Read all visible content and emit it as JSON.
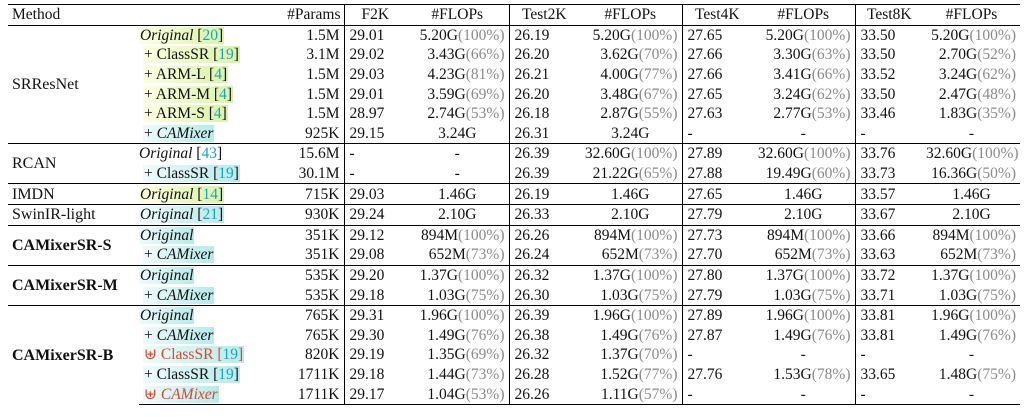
{
  "headers": [
    "Method",
    "#Params",
    "F2K",
    "#FLOPs",
    "Test2K",
    "#FLOPs",
    "Test4K",
    "#FLOPs",
    "Test8K",
    "#FLOPs"
  ],
  "groups": [
    {
      "name": "SRResNet",
      "bold": false,
      "rows": [
        {
          "label": "Original",
          "prefix": "",
          "italic": true,
          "cite": "20",
          "hl": "y",
          "red": false,
          "params": "1.5M",
          "f2k": "29.01",
          "f2k_flops": "5.20G",
          "f2k_pct": "(100%)",
          "t2k": "26.19",
          "t2k_flops": "5.20G",
          "t2k_pct": "(100%)",
          "t4k": "27.65",
          "t4k_flops": "5.20G",
          "t4k_pct": "(100%)",
          "t8k": "33.50",
          "t8k_flops": "5.20G",
          "t8k_pct": "(100%)"
        },
        {
          "label": "ClassSR",
          "prefix": "+ ",
          "italic": false,
          "cite": "19",
          "hl": "y",
          "red": false,
          "params": "3.1M",
          "f2k": "29.02",
          "f2k_flops": "3.43G",
          "f2k_pct": "(66%)",
          "t2k": "26.20",
          "t2k_flops": "3.62G",
          "t2k_pct": "(70%)",
          "t4k": "27.66",
          "t4k_flops": "3.30G",
          "t4k_pct": "(63%)",
          "t8k": "33.50",
          "t8k_flops": "2.70G",
          "t8k_pct": "(52%)"
        },
        {
          "label": "ARM-L",
          "prefix": "+ ",
          "italic": false,
          "cite": "4",
          "hl": "y",
          "red": false,
          "params": "1.5M",
          "f2k": "29.03",
          "f2k_flops": "4.23G",
          "f2k_pct": "(81%)",
          "t2k": "26.21",
          "t2k_flops": "4.00G",
          "t2k_pct": "(77%)",
          "t4k": "27.66",
          "t4k_flops": "3.41G",
          "t4k_pct": "(66%)",
          "t8k": "33.52",
          "t8k_flops": "3.24G",
          "t8k_pct": "(62%)"
        },
        {
          "label": "ARM-M",
          "prefix": "+ ",
          "italic": false,
          "cite": "4",
          "hl": "y",
          "red": false,
          "params": "1.5M",
          "f2k": "29.01",
          "f2k_flops": "3.59G",
          "f2k_pct": "(69%)",
          "t2k": "26.20",
          "t2k_flops": "3.48G",
          "t2k_pct": "(67%)",
          "t4k": "27.65",
          "t4k_flops": "3.24G",
          "t4k_pct": "(62%)",
          "t8k": "33.50",
          "t8k_flops": "2.47G",
          "t8k_pct": "(48%)"
        },
        {
          "label": "ARM-S",
          "prefix": "+ ",
          "italic": false,
          "cite": "4",
          "hl": "y",
          "red": false,
          "params": "1.5M",
          "f2k": "28.97",
          "f2k_flops": "2.74G",
          "f2k_pct": "(53%)",
          "t2k": "26.18",
          "t2k_flops": "2.87G",
          "t2k_pct": "(55%)",
          "t4k": "27.63",
          "t4k_flops": "2.77G",
          "t4k_pct": "(53%)",
          "t8k": "33.46",
          "t8k_flops": "1.83G",
          "t8k_pct": "(35%)"
        },
        {
          "label": "CAMixer",
          "prefix": "+ ",
          "italic": true,
          "cite": "",
          "hl": "c",
          "red": false,
          "params": "925K",
          "f2k": "29.15",
          "f2k_flops": "3.24G",
          "f2k_pct": "",
          "t2k": "26.31",
          "t2k_flops": "3.24G",
          "t2k_pct": "",
          "t4k": "-",
          "t4k_flops": "-",
          "t4k_pct": "",
          "t8k": "-",
          "t8k_flops": "-",
          "t8k_pct": ""
        }
      ]
    },
    {
      "name": "RCAN",
      "bold": false,
      "rows": [
        {
          "label": "Original",
          "prefix": "",
          "italic": true,
          "cite": "43",
          "hl": "",
          "red": false,
          "params": "15.6M",
          "f2k": "-",
          "f2k_flops": "-",
          "f2k_pct": "",
          "t2k": "26.39",
          "t2k_flops": "32.60G",
          "t2k_pct": "(100%)",
          "t4k": "27.89",
          "t4k_flops": "32.60G",
          "t4k_pct": "(100%)",
          "t8k": "33.76",
          "t8k_flops": "32.60G",
          "t8k_pct": "(100%)"
        },
        {
          "label": "ClassSR",
          "prefix": "+ ",
          "italic": false,
          "cite": "19",
          "hl": "c",
          "red": false,
          "params": "30.1M",
          "f2k": "-",
          "f2k_flops": "-",
          "f2k_pct": "",
          "t2k": "26.39",
          "t2k_flops": "21.22G",
          "t2k_pct": "(65%)",
          "t4k": "27.88",
          "t4k_flops": "19.49G",
          "t4k_pct": "(60%)",
          "t8k": "33.73",
          "t8k_flops": "16.36G",
          "t8k_pct": "(50%)"
        }
      ]
    },
    {
      "name": "IMDN",
      "bold": false,
      "rows": [
        {
          "label": "Original",
          "prefix": "",
          "italic": true,
          "cite": "14",
          "hl": "y",
          "red": false,
          "params": "715K",
          "f2k": "29.03",
          "f2k_flops": "1.46G",
          "f2k_pct": "",
          "t2k": "26.19",
          "t2k_flops": "1.46G",
          "t2k_pct": "",
          "t4k": "27.65",
          "t4k_flops": "1.46G",
          "t4k_pct": "",
          "t8k": "33.57",
          "t8k_flops": "1.46G",
          "t8k_pct": ""
        }
      ]
    },
    {
      "name": "SwinIR-light",
      "bold": false,
      "rows": [
        {
          "label": "Original",
          "prefix": "",
          "italic": true,
          "cite": "21",
          "hl": "c",
          "red": false,
          "params": "930K",
          "f2k": "29.24",
          "f2k_flops": "2.10G",
          "f2k_pct": "",
          "t2k": "26.33",
          "t2k_flops": "2.10G",
          "t2k_pct": "",
          "t4k": "27.79",
          "t4k_flops": "2.10G",
          "t4k_pct": "",
          "t8k": "33.67",
          "t8k_flops": "2.10G",
          "t8k_pct": ""
        }
      ]
    },
    {
      "name": "CAMixerSR-S",
      "bold": true,
      "rows": [
        {
          "label": "Original",
          "prefix": "",
          "italic": true,
          "cite": "",
          "hl": "c",
          "red": false,
          "params": "351K",
          "f2k": "29.12",
          "f2k_flops": "894M",
          "f2k_pct": "(100%)",
          "t2k": "26.26",
          "t2k_flops": "894M",
          "t2k_pct": "(100%)",
          "t4k": "27.73",
          "t4k_flops": "894M",
          "t4k_pct": "(100%)",
          "t8k": "33.66",
          "t8k_flops": "894M",
          "t8k_pct": "(100%)"
        },
        {
          "label": "CAMixer",
          "prefix": "+ ",
          "italic": true,
          "cite": "",
          "hl": "c",
          "red": false,
          "params": "351K",
          "f2k": "29.08",
          "f2k_flops": "652M",
          "f2k_pct": "(73%)",
          "t2k": "26.24",
          "t2k_flops": "652M",
          "t2k_pct": "(73%)",
          "t4k": "27.70",
          "t4k_flops": "652M",
          "t4k_pct": "(73%)",
          "t8k": "33.63",
          "t8k_flops": "652M",
          "t8k_pct": "(73%)"
        }
      ]
    },
    {
      "name": "CAMixerSR-M",
      "bold": true,
      "rows": [
        {
          "label": "Original",
          "prefix": "",
          "italic": true,
          "cite": "",
          "hl": "c",
          "red": false,
          "params": "535K",
          "f2k": "29.20",
          "f2k_flops": "1.37G",
          "f2k_pct": "(100%)",
          "t2k": "26.32",
          "t2k_flops": "1.37G",
          "t2k_pct": "(100%)",
          "t4k": "27.80",
          "t4k_flops": "1.37G",
          "t4k_pct": "(100%)",
          "t8k": "33.72",
          "t8k_flops": "1.37G",
          "t8k_pct": "(100%)"
        },
        {
          "label": "CAMixer",
          "prefix": "+ ",
          "italic": true,
          "cite": "",
          "hl": "c",
          "red": false,
          "params": "535K",
          "f2k": "29.18",
          "f2k_flops": "1.03G",
          "f2k_pct": "(75%)",
          "t2k": "26.30",
          "t2k_flops": "1.03G",
          "t2k_pct": "(75%)",
          "t4k": "27.79",
          "t4k_flops": "1.03G",
          "t4k_pct": "(75%)",
          "t8k": "33.71",
          "t8k_flops": "1.03G",
          "t8k_pct": "(75%)"
        }
      ]
    },
    {
      "name": "CAMixerSR-B",
      "bold": true,
      "rows": [
        {
          "label": "Original",
          "prefix": "",
          "italic": true,
          "cite": "",
          "hl": "c",
          "red": false,
          "params": "765K",
          "f2k": "29.31",
          "f2k_flops": "1.96G",
          "f2k_pct": "(100%)",
          "t2k": "26.39",
          "t2k_flops": "1.96G",
          "t2k_pct": "(100%)",
          "t4k": "27.89",
          "t4k_flops": "1.96G",
          "t4k_pct": "(100%)",
          "t8k": "33.81",
          "t8k_flops": "1.96G",
          "t8k_pct": "(100%)"
        },
        {
          "label": "CAMixer",
          "prefix": "+ ",
          "italic": true,
          "cite": "",
          "hl": "c",
          "red": false,
          "params": "765K",
          "f2k": "29.30",
          "f2k_flops": "1.49G",
          "f2k_pct": "(76%)",
          "t2k": "26.38",
          "t2k_flops": "1.49G",
          "t2k_pct": "(76%)",
          "t4k": "27.87",
          "t4k_flops": "1.49G",
          "t4k_pct": "(76%)",
          "t8k": "33.81",
          "t8k_flops": "1.49G",
          "t8k_pct": "(76%)"
        },
        {
          "label": "ClassSR",
          "prefix": "⊎ ",
          "italic": false,
          "cite": "19",
          "hl": "c",
          "red": true,
          "params": "820K",
          "f2k": "29.19",
          "f2k_flops": "1.35G",
          "f2k_pct": "(69%)",
          "t2k": "26.32",
          "t2k_flops": "1.37G",
          "t2k_pct": "(70%)",
          "t4k": "-",
          "t4k_flops": "-",
          "t4k_pct": "",
          "t8k": "-",
          "t8k_flops": "-",
          "t8k_pct": ""
        },
        {
          "label": "ClassSR",
          "prefix": "+ ",
          "italic": false,
          "cite": "19",
          "hl": "c",
          "red": false,
          "params": "1711K",
          "f2k": "29.18",
          "f2k_flops": "1.44G",
          "f2k_pct": "(73%)",
          "t2k": "26.28",
          "t2k_flops": "1.52G",
          "t2k_pct": "(77%)",
          "t4k": "27.76",
          "t4k_flops": "1.53G",
          "t4k_pct": "(78%)",
          "t8k": "33.65",
          "t8k_flops": "1.48G",
          "t8k_pct": "(75%)"
        },
        {
          "label": "CAMixer",
          "prefix": "⊎ ",
          "italic": true,
          "cite": "",
          "hl": "c",
          "red": true,
          "params": "1711K",
          "f2k": "29.17",
          "f2k_flops": "1.04G",
          "f2k_pct": "(53%)",
          "t2k": "26.26",
          "t2k_flops": "1.11G",
          "t2k_pct": "(57%)",
          "t4k": "-",
          "t4k_flops": "-",
          "t4k_pct": "",
          "t8k": "-",
          "t8k_flops": "-",
          "t8k_pct": ""
        }
      ]
    }
  ]
}
